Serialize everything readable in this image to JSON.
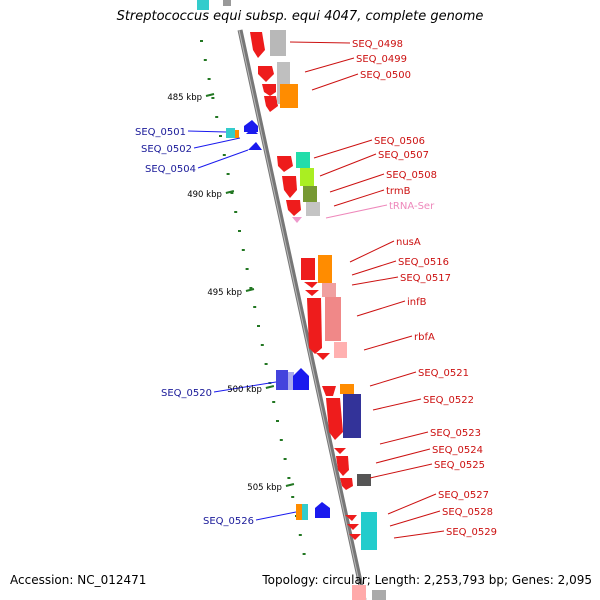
{
  "map": {
    "title": "Streptococcus equi subsp. equi 4047, complete genome",
    "accession": "Accession: NC_012471",
    "summary": "Topology: circular; Length: 2,253,793 bp; Genes: 2,095",
    "colors": {
      "forward_gene": "#ee1c1c",
      "reverse_gene": "#1a1aee",
      "forward_label": "#cc1111",
      "reverse_label": "#1a1a99",
      "trna_label": "#ee88bb",
      "backbone": "#888888",
      "tick": "#227722"
    },
    "ticks": [
      {
        "label": "485 kbp"
      },
      {
        "label": "490 kbp"
      },
      {
        "label": "495 kbp"
      },
      {
        "label": "500 kbp"
      },
      {
        "label": "505 kbp"
      }
    ],
    "genes_right": [
      {
        "label": "SEQ_0498"
      },
      {
        "label": "SEQ_0499"
      },
      {
        "label": "SEQ_0500"
      },
      {
        "label": "SEQ_0506"
      },
      {
        "label": "SEQ_0507"
      },
      {
        "label": "SEQ_0508"
      },
      {
        "label": "trmB"
      },
      {
        "label": "tRNA-Ser"
      },
      {
        "label": "nusA"
      },
      {
        "label": "SEQ_0516"
      },
      {
        "label": "SEQ_0517"
      },
      {
        "label": "infB"
      },
      {
        "label": "rbfA"
      },
      {
        "label": "SEQ_0521"
      },
      {
        "label": "SEQ_0522"
      },
      {
        "label": "SEQ_0523"
      },
      {
        "label": "SEQ_0524"
      },
      {
        "label": "SEQ_0525"
      },
      {
        "label": "SEQ_0527"
      },
      {
        "label": "SEQ_0528"
      },
      {
        "label": "SEQ_0529"
      }
    ],
    "genes_left": [
      {
        "label": "SEQ_0501"
      },
      {
        "label": "SEQ_0502"
      },
      {
        "label": "SEQ_0504"
      },
      {
        "label": "SEQ_0520"
      },
      {
        "label": "SEQ_0526"
      }
    ]
  }
}
